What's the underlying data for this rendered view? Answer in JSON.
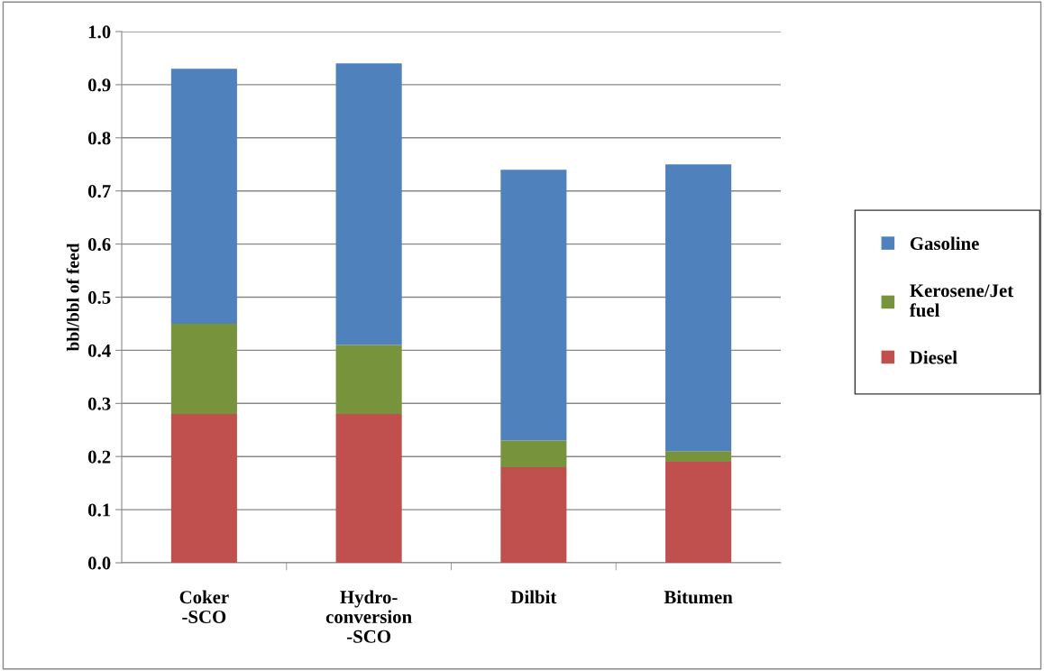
{
  "chart_data": {
    "type": "bar",
    "stacked": true,
    "ylabel": "bbl/bbl of feed",
    "categories": [
      "Coker\n-SCO",
      "Hydro-\nconversion\n-SCO",
      "Dilbit",
      "Bitumen"
    ],
    "series": [
      {
        "name": "Diesel",
        "color": "#c0504d",
        "values": [
          0.28,
          0.28,
          0.18,
          0.19
        ]
      },
      {
        "name": "Kerosene/Jet\nfuel",
        "color": "#77933c",
        "values": [
          0.17,
          0.13,
          0.05,
          0.02
        ]
      },
      {
        "name": "Gasoline",
        "color": "#4f81bd",
        "values": [
          0.48,
          0.53,
          0.51,
          0.54
        ]
      }
    ],
    "ylim": [
      0,
      1.0
    ],
    "yticks": [
      {
        "value": 0,
        "label": "0.0"
      },
      {
        "value": 0.1,
        "label": "0.1"
      },
      {
        "value": 0.2,
        "label": "0.2"
      },
      {
        "value": 0.3,
        "label": "0.3"
      },
      {
        "value": 0.4,
        "label": "0.4"
      },
      {
        "value": 0.5,
        "label": "0.5"
      },
      {
        "value": 0.6,
        "label": "0.6"
      },
      {
        "value": 0.7,
        "label": "0.7"
      },
      {
        "value": 0.8,
        "label": "0.8"
      },
      {
        "value": 0.9,
        "label": "0.9"
      },
      {
        "value": 1.0,
        "label": "1.0"
      }
    ],
    "grid": "y",
    "legend": "right"
  }
}
